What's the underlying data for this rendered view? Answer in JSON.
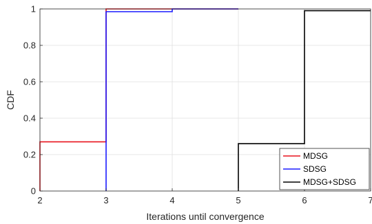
{
  "chart_data": {
    "type": "line",
    "subtype": "empirical-cdf-step",
    "xlabel": "Iterations until convergence",
    "ylabel": "CDF",
    "xlim": [
      2,
      7
    ],
    "ylim": [
      0,
      1
    ],
    "xticks": [
      2,
      3,
      4,
      5,
      6,
      7
    ],
    "yticks": [
      0,
      0.2,
      0.4,
      0.6,
      0.8,
      1
    ],
    "xtick_labels": [
      "2",
      "3",
      "4",
      "5",
      "6",
      "7"
    ],
    "ytick_labels": [
      "0",
      "0.2",
      "0.4",
      "0.6",
      "0.8",
      "1"
    ],
    "grid": true,
    "legend_position": "bottom-right",
    "series": [
      {
        "name": "MDSG",
        "color": "#e8111b",
        "x": [
          2,
          2,
          3,
          3,
          4,
          5
        ],
        "y": [
          0,
          0.27,
          0.27,
          1.0,
          1.0,
          1.0
        ]
      },
      {
        "name": "SDSG",
        "color": "#1a1aff",
        "x": [
          3,
          3,
          4,
          4,
          5
        ],
        "y": [
          0,
          0.985,
          0.985,
          1.0,
          1.0
        ]
      },
      {
        "name": "MDSG+SDSG",
        "color": "#000000",
        "x": [
          5,
          5,
          6,
          6,
          7
        ],
        "y": [
          0,
          0.26,
          0.26,
          0.99,
          0.99
        ]
      }
    ]
  }
}
